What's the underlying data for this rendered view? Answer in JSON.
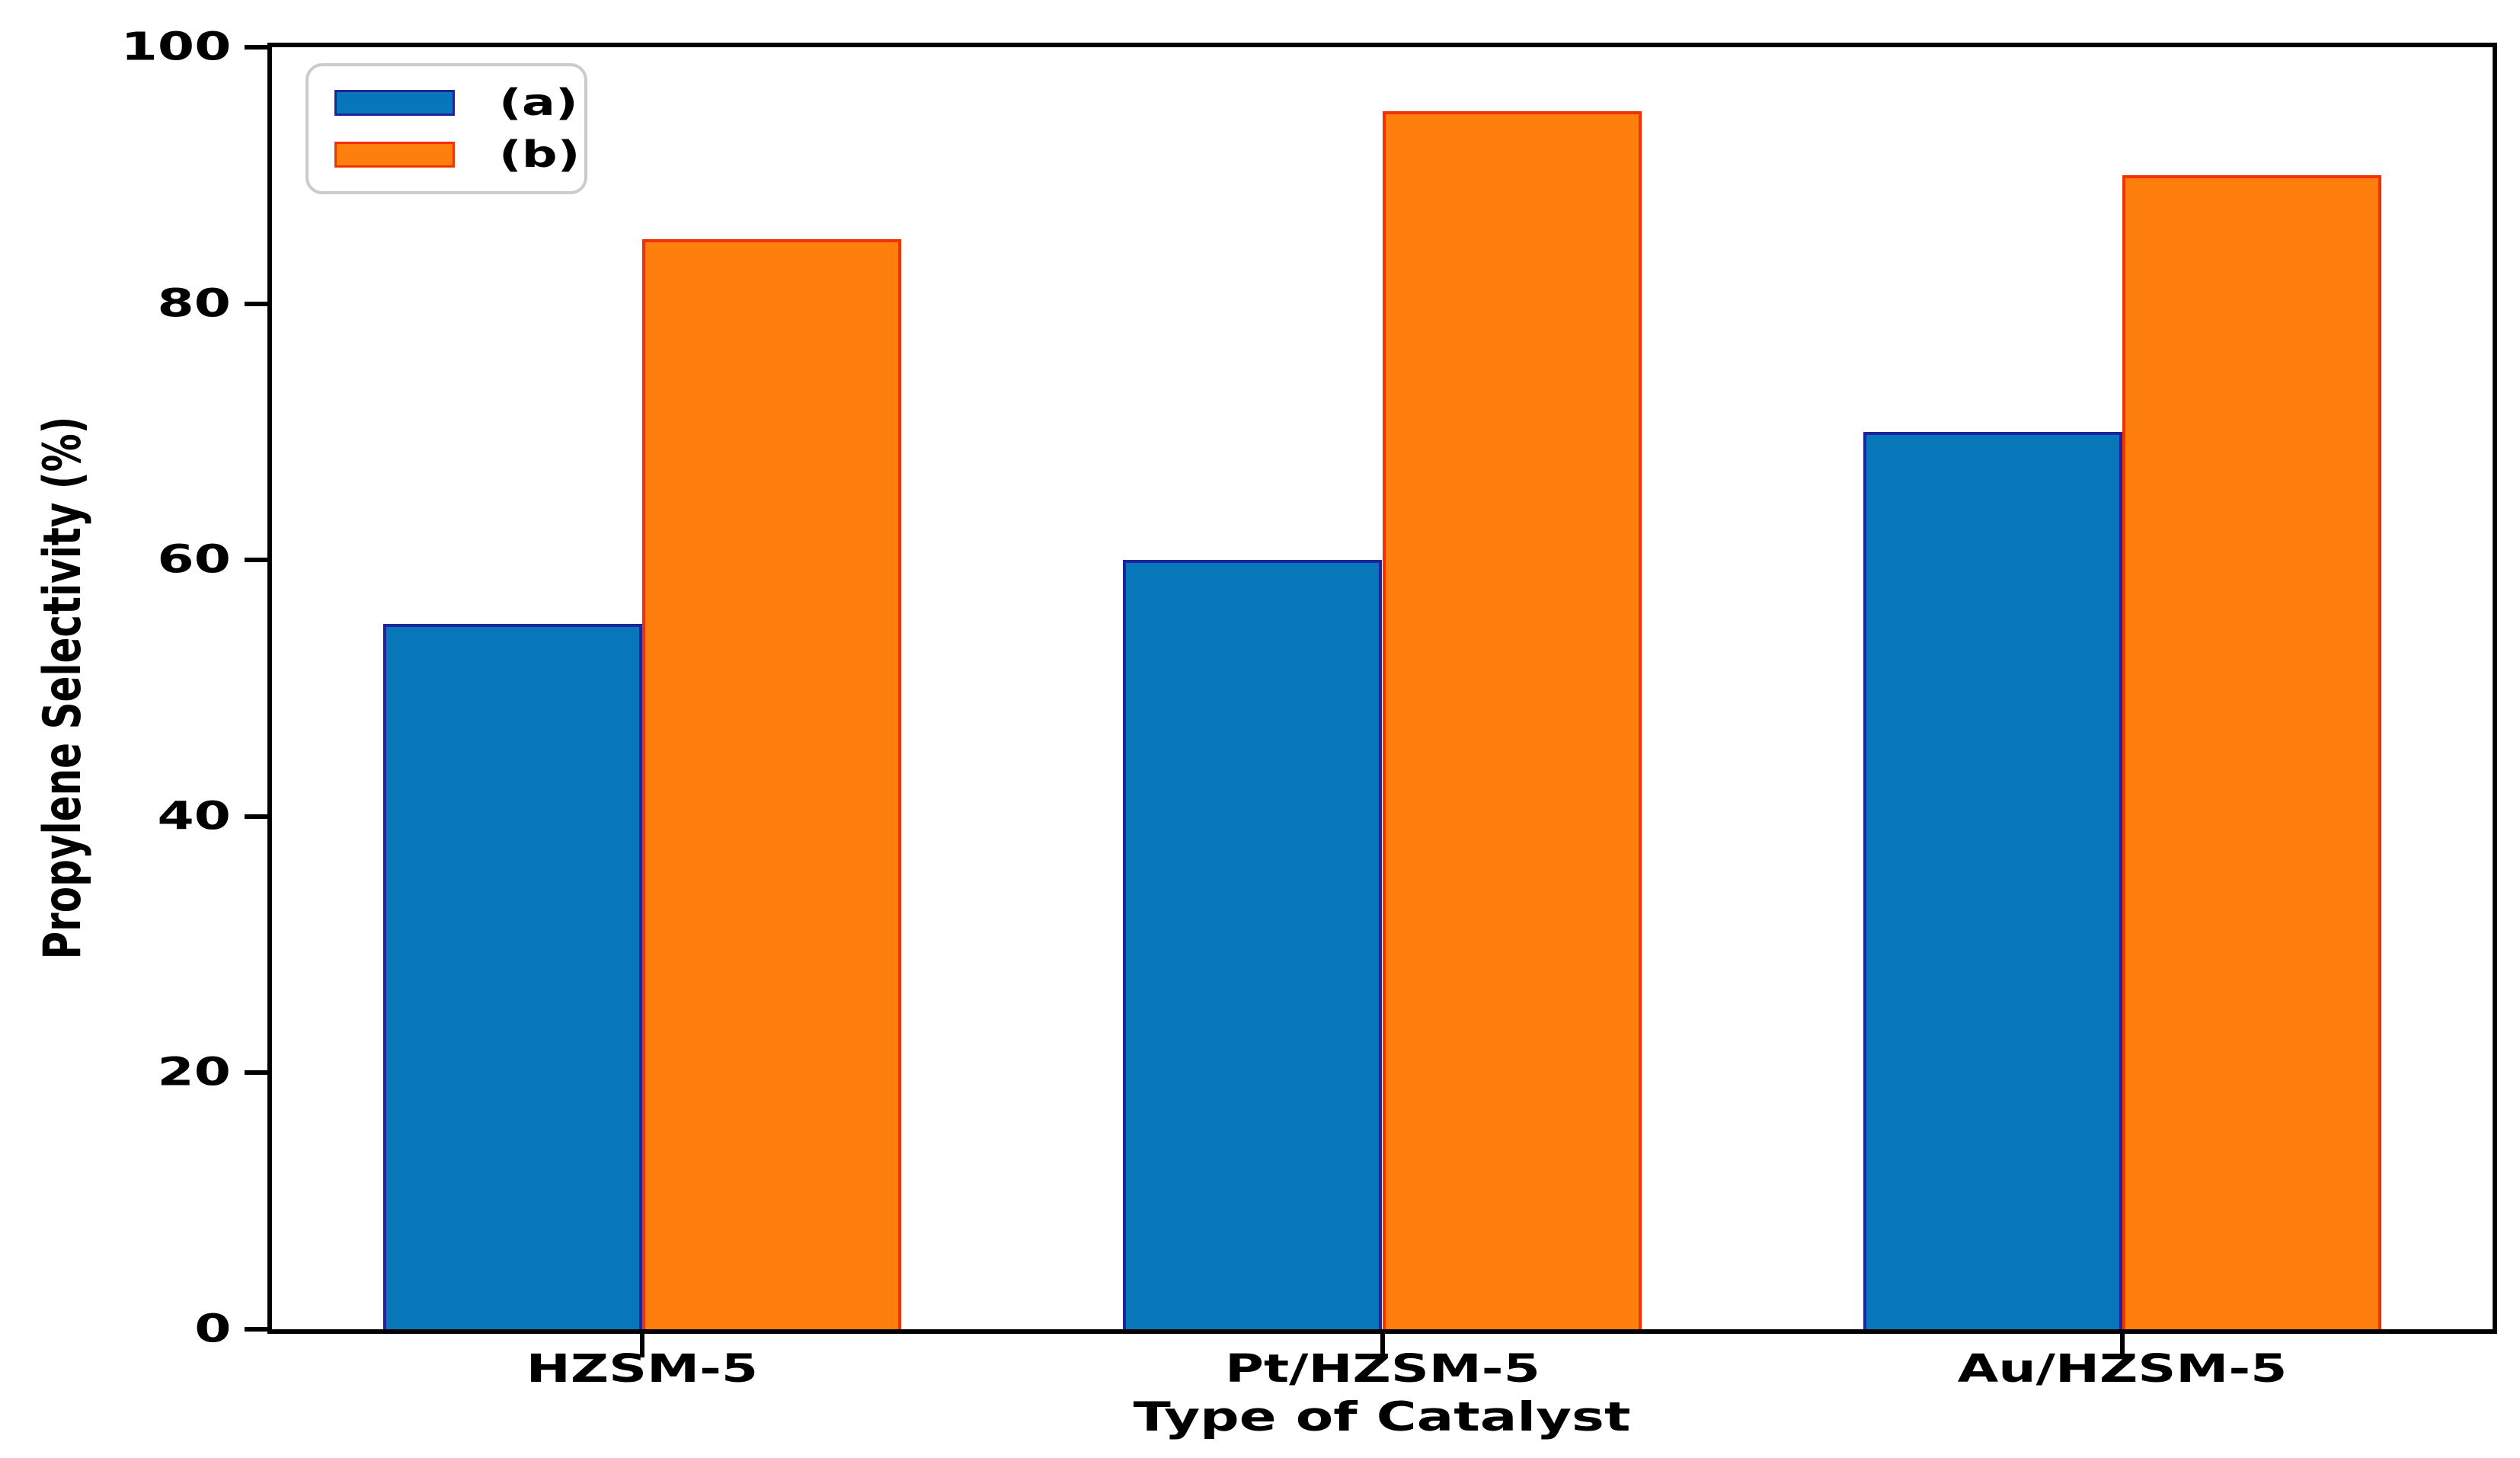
{
  "chart_data": {
    "type": "bar",
    "title": "",
    "xlabel": "Type of Catalyst",
    "ylabel": "Propylene Selectivity (%)",
    "categories": [
      "HZSM-5",
      "Pt/HZSM-5",
      "Au/HZSM-5"
    ],
    "series": [
      {
        "name": "(a)",
        "values": [
          55,
          60,
          70
        ],
        "fill": "#0877ba",
        "edge": "#20249c"
      },
      {
        "name": "(b)",
        "values": [
          85,
          95,
          90
        ],
        "fill": "#ff7f0e",
        "edge": "#f63100"
      }
    ],
    "ylim": [
      0,
      100
    ],
    "yticks": [
      0,
      20,
      40,
      60,
      80,
      100
    ],
    "bar_width": 0.35,
    "grid": false,
    "legend_position": "upper-left",
    "axis_color": "#000000",
    "text_color": "#000000",
    "background": "#ffffff"
  }
}
